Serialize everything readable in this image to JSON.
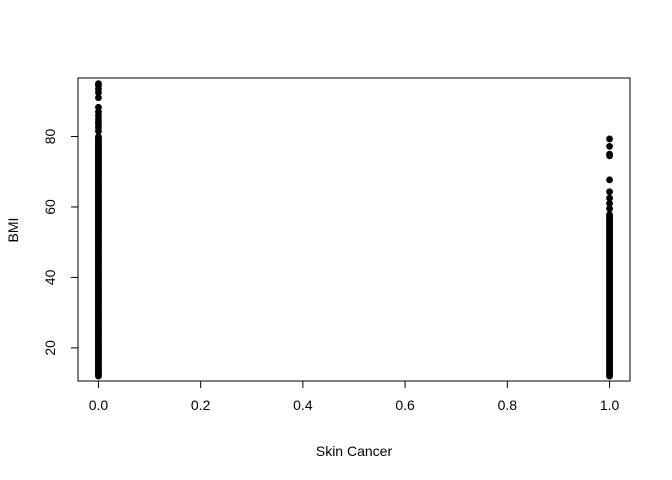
{
  "chart_data": {
    "type": "scatter",
    "title": "",
    "xlabel": "Skin Cancer",
    "ylabel": "BMI",
    "xlim": [
      -0.04,
      1.04
    ],
    "ylim": [
      10.6,
      96.6
    ],
    "x_ticks": [
      "0.0",
      "0.2",
      "0.4",
      "0.6",
      "0.8",
      "1.0"
    ],
    "x_tick_values": [
      0.0,
      0.2,
      0.4,
      0.6,
      0.8,
      1.0
    ],
    "y_ticks": [
      "20",
      "40",
      "60",
      "80"
    ],
    "y_tick_values": [
      20,
      40,
      60,
      80
    ],
    "grid": false,
    "marker_color": "#000000",
    "series": [
      {
        "x_value": 0,
        "dense_range": [
          12.0,
          80.0
        ],
        "outliers": [
          81.5,
          82.5,
          83.5,
          84.2,
          85.0,
          86.0,
          87.0,
          88.3,
          91.0,
          92.5,
          93.5,
          94.5,
          95.0
        ]
      },
      {
        "x_value": 1,
        "dense_range": [
          12.0,
          58.0
        ],
        "outliers": [
          59.5,
          61.0,
          62.5,
          64.3,
          67.7,
          74.5,
          75.0,
          77.2,
          79.3
        ]
      }
    ]
  }
}
